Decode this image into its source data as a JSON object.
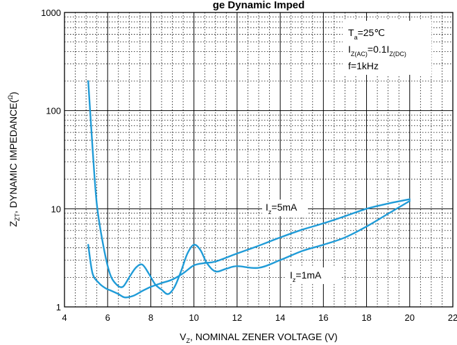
{
  "chart_data": {
    "type": "line",
    "title": "ge Dynamic Imped",
    "xlabel": {
      "main": "V",
      "sub": "Z",
      "rest": ", NOMINAL ZENER VOLTAGE (V)"
    },
    "ylabel": {
      "main": "Z",
      "sub": "ZT",
      "rest": ", DYNAMIC IMPEDANCE(",
      "sup": "Ω",
      "close": ")"
    },
    "x_range": [
      4,
      22
    ],
    "y_range": [
      1,
      1000
    ],
    "y_scale": "log",
    "x_ticks": [
      "4",
      "6",
      "8",
      "10",
      "12",
      "14",
      "16",
      "18",
      "20",
      "22"
    ],
    "y_ticks": [
      "1",
      "10",
      "100",
      "1000"
    ],
    "grid": {
      "major": "solid",
      "minor": "dotted"
    },
    "line_color": "#1f9bd7",
    "conditions": [
      {
        "main": "T",
        "sub": "a",
        "rest": "=25℃"
      },
      {
        "main": "I",
        "sub": "Z(AC)",
        "rest": "=0.1I",
        "sub2": "Z(DC)"
      },
      {
        "main": "f=1kHz"
      }
    ],
    "series": [
      {
        "name": {
          "main": "I",
          "sub": "z",
          "rest": "=5mA"
        },
        "x": [
          5.1,
          5.3,
          5.5,
          5.8,
          6.1,
          6.4,
          6.7,
          7.0,
          7.3,
          7.6,
          7.9,
          8.2,
          8.5,
          8.8,
          9.1,
          9.4,
          9.7,
          10.0,
          10.3,
          10.6,
          11.0,
          11.5,
          12,
          13,
          14,
          15,
          16,
          17,
          18,
          19,
          20
        ],
        "y": [
          200,
          42,
          11,
          4.2,
          2.2,
          1.7,
          1.6,
          2.0,
          2.5,
          2.7,
          2.2,
          1.7,
          1.5,
          1.35,
          1.6,
          2.3,
          3.5,
          4.3,
          3.8,
          2.8,
          2.3,
          2.45,
          2.6,
          2.5,
          3.0,
          3.7,
          4.3,
          5.1,
          6.6,
          8.9,
          12
        ]
      },
      {
        "name": {
          "main": "I",
          "sub": "z",
          "rest": "=1mA"
        },
        "x": [
          5.1,
          5.3,
          5.6,
          5.9,
          6.2,
          6.5,
          6.8,
          7.2,
          7.6,
          8.0,
          8.5,
          9.0,
          9.5,
          10.0,
          10.5,
          11.0,
          12,
          13,
          14,
          15,
          16,
          17,
          18,
          19,
          20
        ],
        "y": [
          4.3,
          2.2,
          1.75,
          1.55,
          1.45,
          1.35,
          1.25,
          1.3,
          1.45,
          1.6,
          1.75,
          1.9,
          2.2,
          2.65,
          2.8,
          2.9,
          3.5,
          4.2,
          5.1,
          6.1,
          7.1,
          8.4,
          10.0,
          11.3,
          12.5
        ]
      }
    ]
  }
}
